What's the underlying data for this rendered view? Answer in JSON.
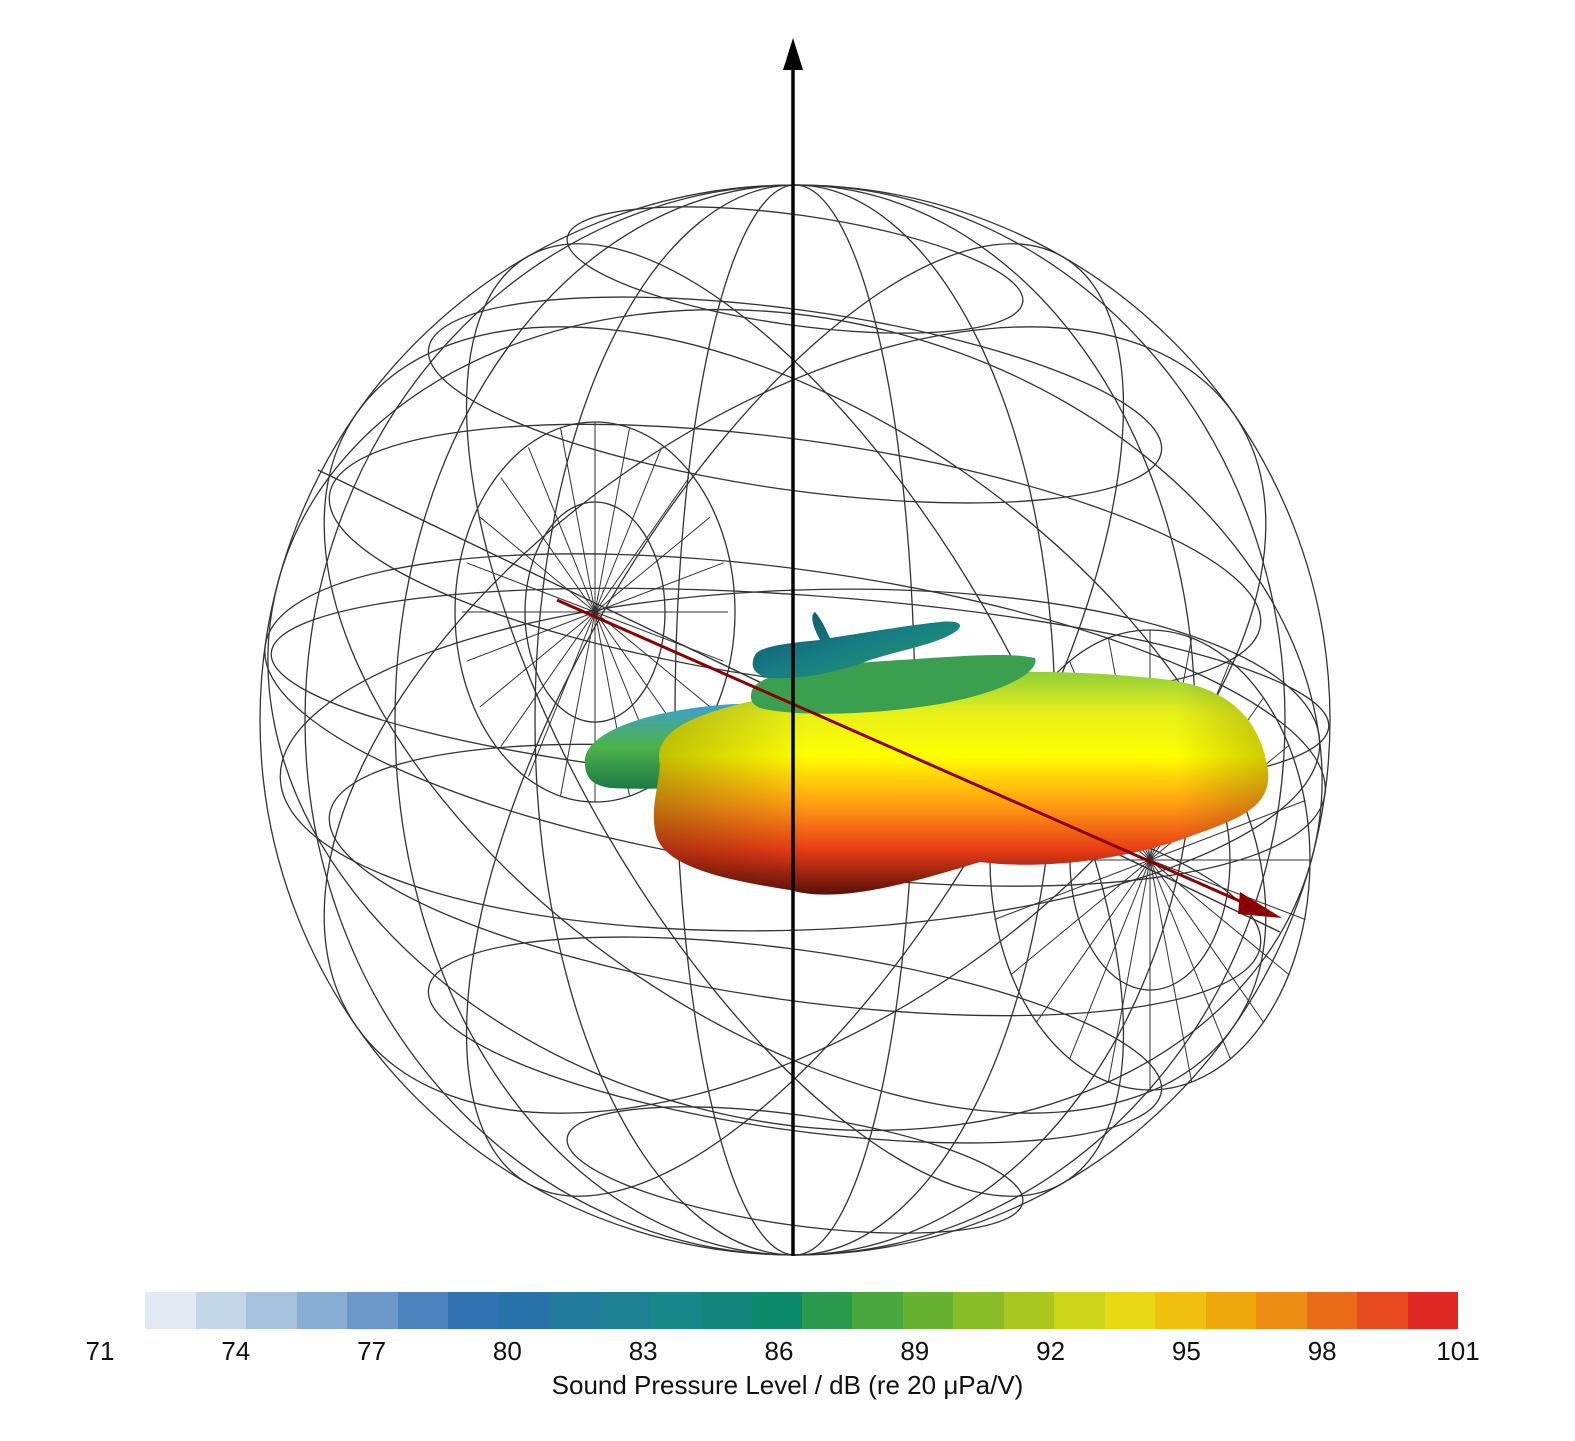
{
  "colorbar": {
    "label": "Sound Pressure Level / dB (re 20 μPa/V)",
    "min": 71,
    "max": 101,
    "ticks": [
      "71",
      "74",
      "77",
      "80",
      "83",
      "86",
      "89",
      "92",
      "95",
      "98",
      "101"
    ],
    "colors": [
      "#e2e9f2",
      "#c3d6e8",
      "#a5c2de",
      "#88add3",
      "#6b98c8",
      "#4e84bd",
      "#2f70b1",
      "#2772a9",
      "#217a9c",
      "#1d8092",
      "#188789",
      "#12857d",
      "#0c8b6b",
      "#2a9a4c",
      "#4aa73f",
      "#68b233",
      "#88bd28",
      "#aac71f",
      "#ccd41a",
      "#e9d914",
      "#f0c20f",
      "#eea80c",
      "#ec8c12",
      "#ea6c18",
      "#e64a1e",
      "#e02824"
    ]
  },
  "icons": {
    "vertical-axis": "black-arrow-up",
    "direction-axis": "red-arrow"
  }
}
